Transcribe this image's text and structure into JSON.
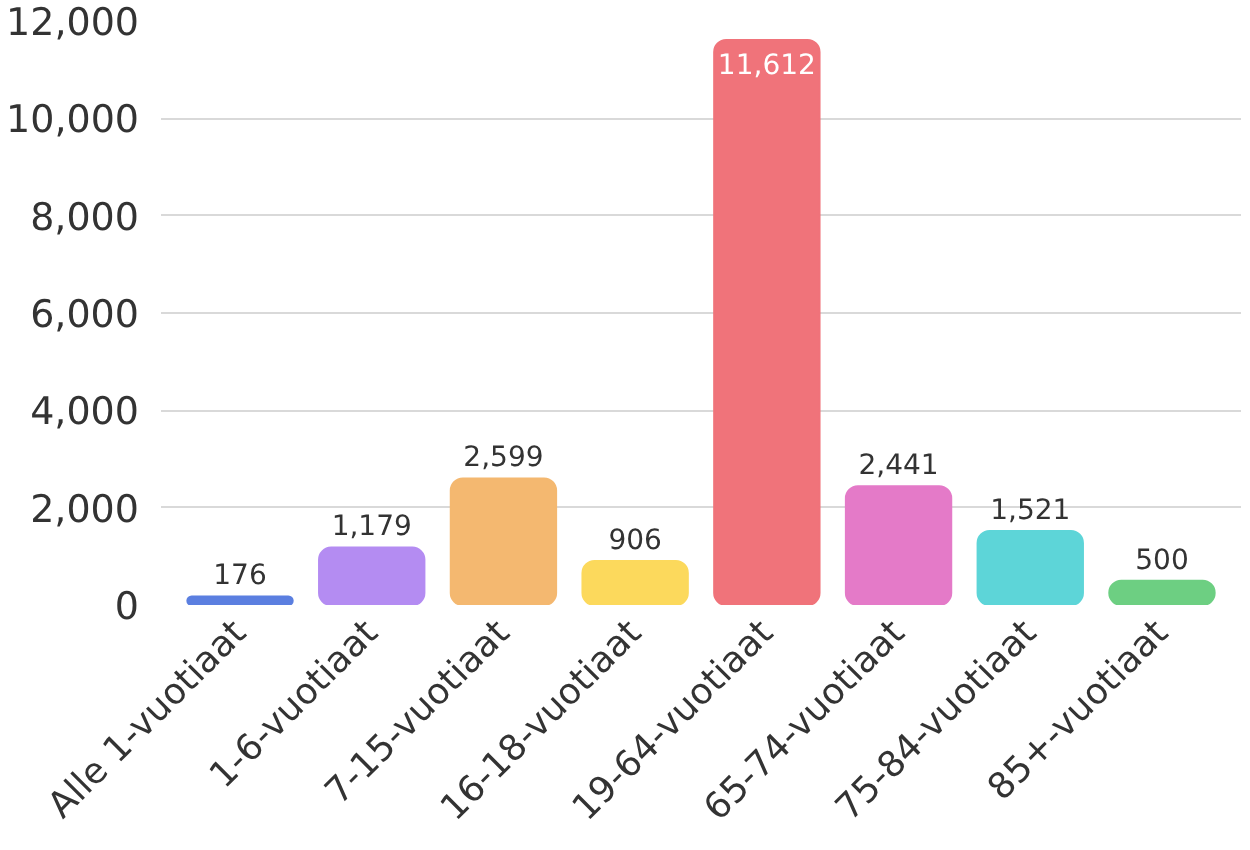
{
  "chart_data": {
    "type": "bar",
    "categories": [
      "Alle 1-vuotiaat",
      "1-6-vuotiaat",
      "7-15-vuotiaat",
      "16-18-vuotiaat",
      "19-64-vuotiaat",
      "65-74-vuotiaat",
      "75-84-vuotiaat",
      "85+-vuotiaat"
    ],
    "values": [
      176,
      1179,
      2599,
      906,
      11612,
      2441,
      1521,
      500
    ],
    "colors": [
      "#5b7fe0",
      "#b48cf2",
      "#f4b870",
      "#fcd95c",
      "#f0737a",
      "#e47ac8",
      "#5dd5d8",
      "#6dcf82"
    ],
    "ylim": [
      0,
      12000
    ],
    "yticks": [
      {
        "value": 0,
        "label": "0"
      },
      {
        "value": 2000,
        "label": "2,000"
      },
      {
        "value": 4000,
        "label": "4,000"
      },
      {
        "value": 6000,
        "label": "6,000"
      },
      {
        "value": 8000,
        "label": "8,000"
      },
      {
        "value": 10000,
        "label": "10,000"
      },
      {
        "value": 12000,
        "label": "12,000"
      }
    ],
    "value_labels": [
      "176",
      "1,179",
      "2,599",
      "906",
      "11,612",
      "2,441",
      "1,521",
      "500"
    ],
    "grid": "y"
  }
}
